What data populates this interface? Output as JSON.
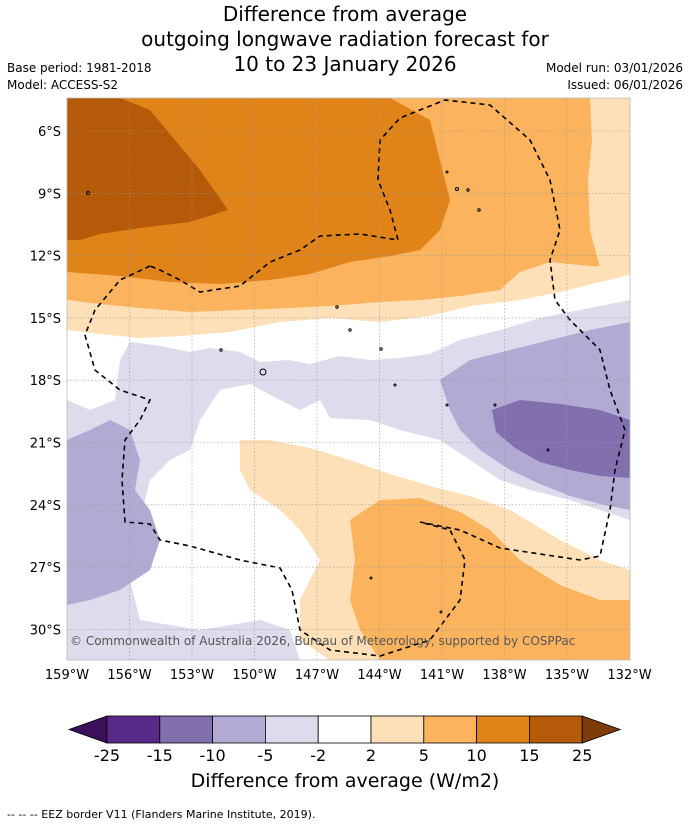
{
  "title": {
    "line1": "Difference from average",
    "line2": "outgoing longwave radiation forecast for",
    "line3": "10 to 23 January 2026"
  },
  "meta": {
    "base_period": "Base period: 1981-2018",
    "model": "Model: ACCESS-S2",
    "model_run": "Model run: 03/01/2026",
    "issued": "Issued: 06/01/2026"
  },
  "map": {
    "lat_labels": [
      "6°S",
      "9°S",
      "12°S",
      "15°S",
      "18°S",
      "21°S",
      "24°S",
      "27°S",
      "30°S"
    ],
    "lon_labels": [
      "159°W",
      "156°W",
      "153°W",
      "150°W",
      "147°W",
      "144°W",
      "141°W",
      "138°W",
      "135°W",
      "132°W"
    ],
    "copyright": "© Commonwealth of Australia 2026, Bureau of Meteorology, supported by COSPPac"
  },
  "colorbar": {
    "ticks": [
      "-25",
      "-15",
      "-10",
      "-5",
      "-2",
      "2",
      "5",
      "10",
      "15",
      "25"
    ],
    "colors": [
      "#3b0f5a",
      "#5a2a8a",
      "#8170ad",
      "#b2aad3",
      "#dcdcec",
      "#ffffff",
      "#fde0b8",
      "#fbb35e",
      "#e08419",
      "#b55a09",
      "#7f3b08"
    ],
    "label": "Difference from average (W/m2)"
  },
  "footnote": "--  --  -- EEZ border V11 (Flanders Marine Institute, 2019)."
}
